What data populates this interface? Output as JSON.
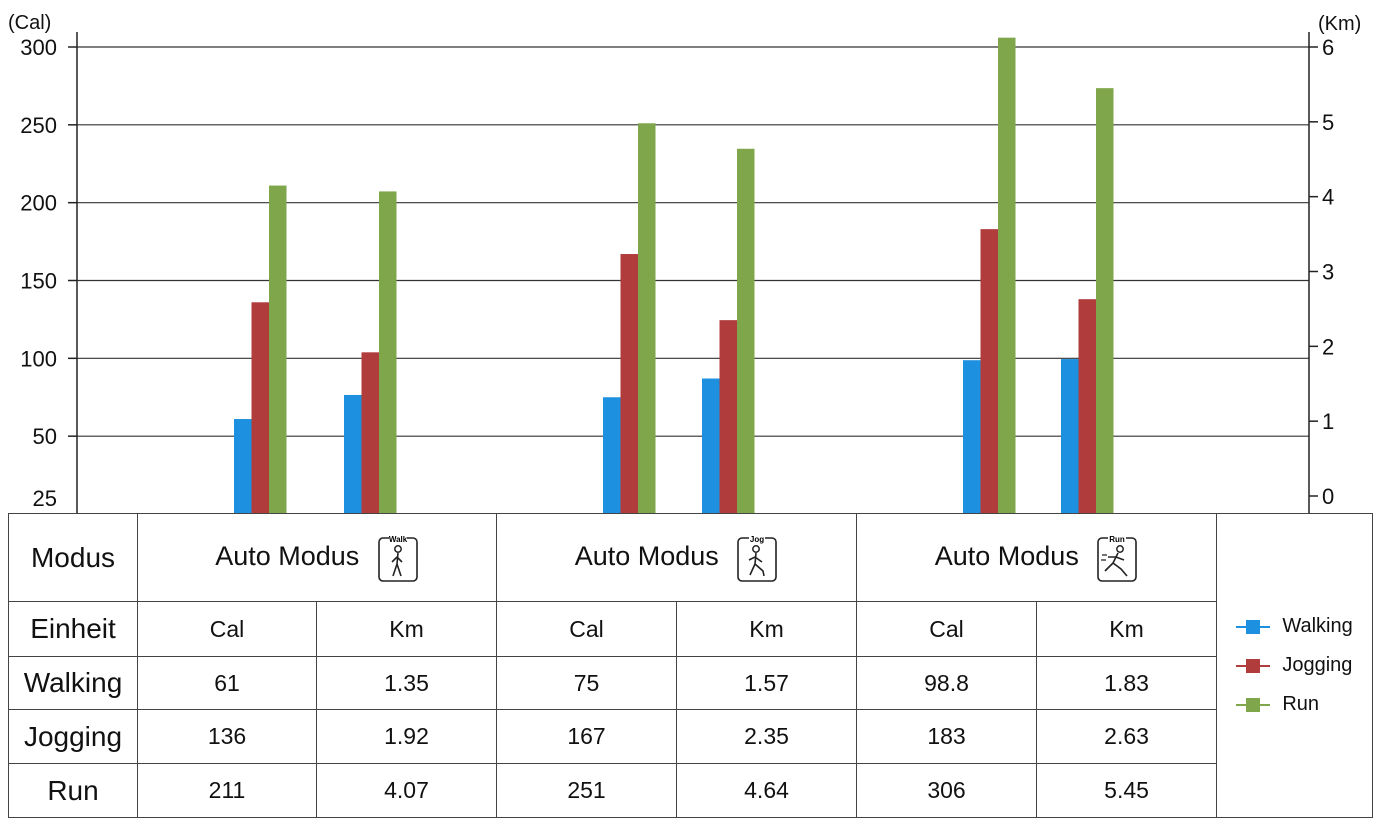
{
  "chart_data": {
    "type": "bar",
    "left_axis": {
      "label": "(Cal)",
      "ticks": [
        25,
        50,
        100,
        150,
        200,
        250,
        300
      ],
      "range": [
        0,
        300
      ]
    },
    "right_axis": {
      "label": "(Km)",
      "ticks": [
        0,
        1,
        2,
        3,
        4,
        5,
        6
      ],
      "range": [
        0,
        6
      ]
    },
    "groups": [
      {
        "mode": "Auto Modus",
        "icon": "walk-icon",
        "icon_label": "Walk",
        "cal": {
          "Walking": 61,
          "Jogging": 136,
          "Run": 211
        },
        "km": {
          "Walking": 1.35,
          "Jogging": 1.92,
          "Run": 4.07
        }
      },
      {
        "mode": "Auto Modus",
        "icon": "jog-icon",
        "icon_label": "Jog",
        "cal": {
          "Walking": 75,
          "Jogging": 167,
          "Run": 251
        },
        "km": {
          "Walking": 1.57,
          "Jogging": 2.35,
          "Run": 4.64
        }
      },
      {
        "mode": "Auto Modus",
        "icon": "run-icon",
        "icon_label": "Run",
        "cal": {
          "Walking": 98.8,
          "Jogging": 183,
          "Run": 306
        },
        "km": {
          "Walking": 1.83,
          "Jogging": 2.63,
          "Run": 5.45
        }
      }
    ],
    "series": [
      {
        "name": "Walking",
        "color": "#1e90e0"
      },
      {
        "name": "Jogging",
        "color": "#b03c3c"
      },
      {
        "name": "Run",
        "color": "#7fa64a"
      }
    ],
    "grid": true,
    "legend_position": "right"
  },
  "table": {
    "row_labels": {
      "mode": "Modus",
      "unit": "Einheit",
      "walking": "Walking",
      "jogging": "Jogging",
      "run": "Run"
    },
    "mode_label": "Auto Modus",
    "units": {
      "cal": "Cal",
      "km": "Km"
    },
    "values": {
      "walking": [
        "61",
        "1.35",
        "75",
        "1.57",
        "98.8",
        "1.83"
      ],
      "jogging": [
        "136",
        "1.92",
        "167",
        "2.35",
        "183",
        "2.63"
      ],
      "run": [
        "211",
        "4.07",
        "251",
        "4.64",
        "306",
        "5.45"
      ]
    }
  },
  "legend": [
    "Walking",
    "Jogging",
    "Run"
  ]
}
